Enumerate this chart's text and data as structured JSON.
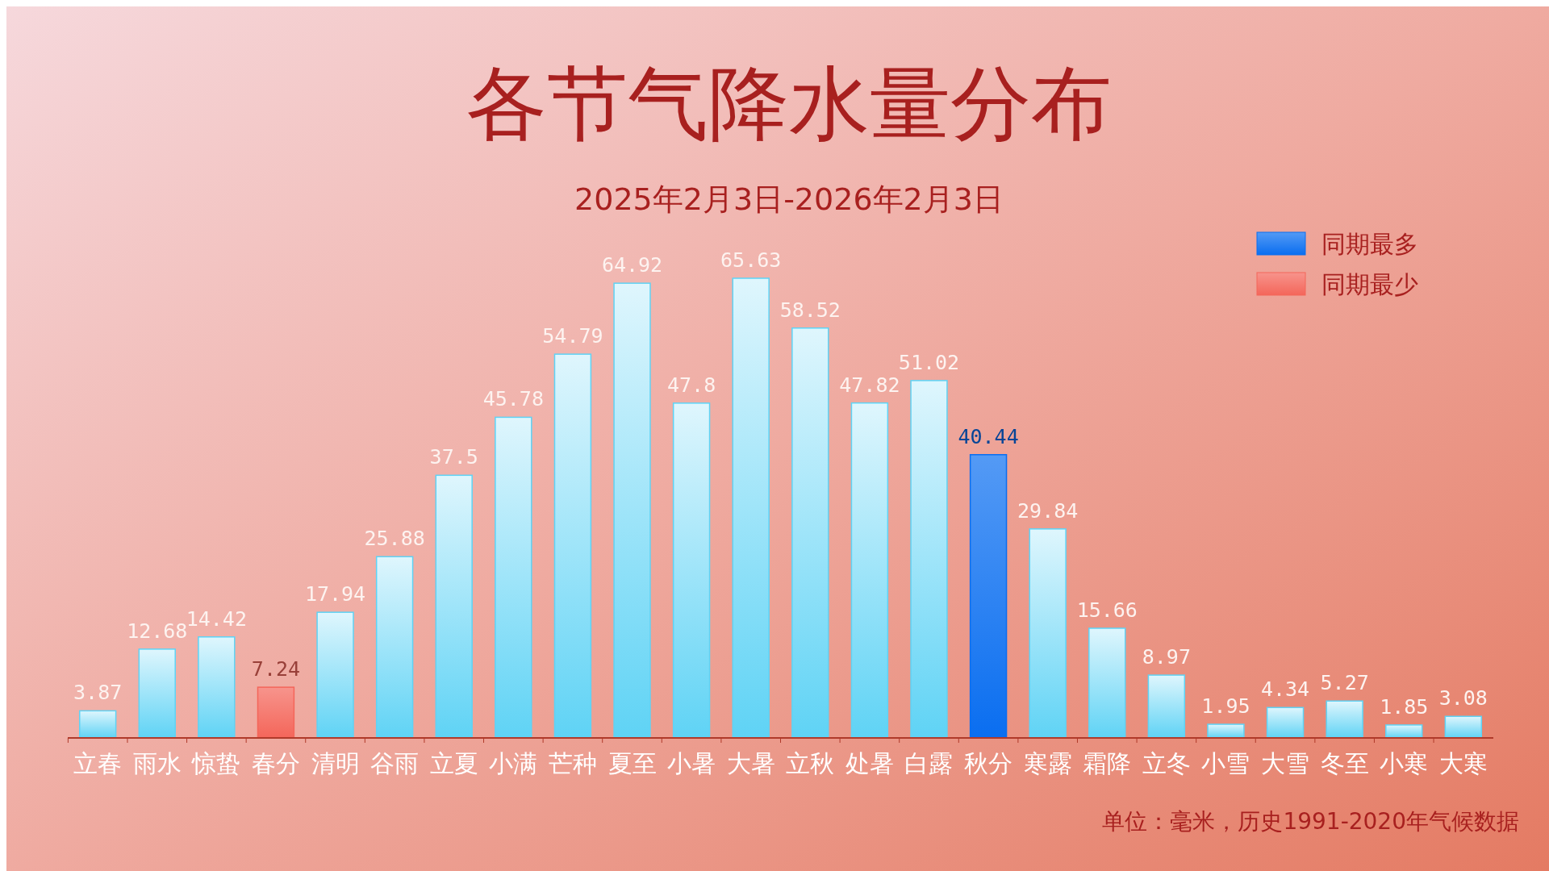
{
  "chart_data": {
    "type": "bar",
    "title": "各节气降水量分布",
    "subtitle": "2025年2月3日-2026年2月3日",
    "categories": [
      "立春",
      "雨水",
      "惊蛰",
      "春分",
      "清明",
      "谷雨",
      "立夏",
      "小满",
      "芒种",
      "夏至",
      "小暑",
      "大暑",
      "立秋",
      "处暑",
      "白露",
      "秋分",
      "寒露",
      "霜降",
      "立冬",
      "小雪",
      "大雪",
      "冬至",
      "小寒",
      "大寒"
    ],
    "series": [
      {
        "color": "#5fd3f5",
        "values": [
          3.87,
          12.68,
          14.42,
          null,
          17.94,
          25.88,
          37.5,
          45.78,
          54.79,
          64.92,
          47.8,
          65.63,
          58.52,
          47.82,
          51.02,
          null,
          29.84,
          15.66,
          8.97,
          1.95,
          4.34,
          5.27,
          1.85,
          3.08
        ]
      },
      {
        "name": "同期最多",
        "color": "#0a6ef0",
        "values": [
          null,
          null,
          null,
          null,
          null,
          null,
          null,
          null,
          null,
          null,
          null,
          null,
          null,
          null,
          null,
          40.44,
          null,
          null,
          null,
          null,
          null,
          null,
          null,
          null
        ]
      },
      {
        "name": "同期最少",
        "color": "#f4665a",
        "values": [
          null,
          null,
          null,
          7.24,
          null,
          null,
          null,
          null,
          null,
          null,
          null,
          null,
          null,
          null,
          null,
          null,
          null,
          null,
          null,
          null,
          null,
          null,
          null,
          null
        ]
      }
    ],
    "data_labels": true,
    "legend": "top right",
    "annotations": [
      "单位：毫米，历史1991-2020年气候数据"
    ]
  }
}
